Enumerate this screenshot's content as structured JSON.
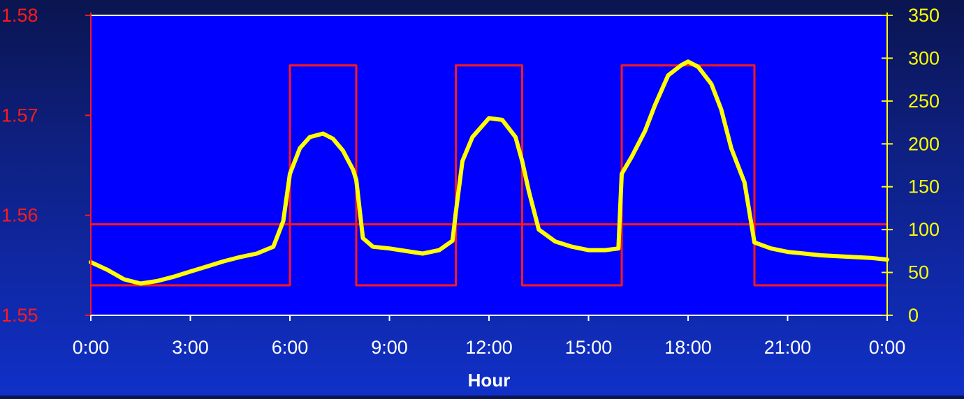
{
  "chart_data": {
    "type": "line",
    "xlabel": "Hour",
    "x_ticks": [
      "0:00",
      "3:00",
      "6:00",
      "9:00",
      "12:00",
      "15:00",
      "18:00",
      "21:00",
      "0:00"
    ],
    "x_range": [
      0,
      24
    ],
    "y_left": {
      "range": [
        1.55,
        1.58
      ],
      "ticks": [
        "1.55",
        "1.56",
        "1.57",
        "1.58"
      ],
      "color": "#ff1a1a"
    },
    "y_right": {
      "range": [
        0,
        350
      ],
      "ticks": [
        "0",
        "50",
        "100",
        "150",
        "200",
        "250",
        "300",
        "350"
      ],
      "color": "#ffff00"
    },
    "plot_background": "#0000ff",
    "series": [
      {
        "axis": "left",
        "color": "#ff1a1a",
        "style": "step",
        "x": [
          0,
          6,
          6,
          8,
          8,
          11,
          11,
          13,
          13,
          16,
          16,
          20,
          20,
          24
        ],
        "y": [
          1.553,
          1.553,
          1.575,
          1.575,
          1.553,
          1.553,
          1.575,
          1.575,
          1.553,
          1.553,
          1.575,
          1.575,
          1.553,
          1.553
        ]
      },
      {
        "axis": "left",
        "color": "#ff1a1a",
        "style": "line",
        "x": [
          0,
          24
        ],
        "y": [
          1.5591,
          1.5591
        ]
      },
      {
        "axis": "right",
        "color": "#ffff00",
        "style": "line",
        "x": [
          0,
          0.5,
          1,
          1.5,
          2,
          2.5,
          3,
          3.5,
          4,
          4.5,
          5,
          5.5,
          5.8,
          6,
          6.3,
          6.6,
          7,
          7.3,
          7.6,
          7.9,
          8,
          8.2,
          8.5,
          9,
          9.5,
          10,
          10.5,
          10.9,
          11,
          11.2,
          11.5,
          12,
          12.4,
          12.8,
          13,
          13.2,
          13.5,
          14,
          14.5,
          15,
          15.5,
          15.9,
          16,
          16.3,
          16.7,
          17,
          17.4,
          17.8,
          18,
          18.3,
          18.7,
          19,
          19.3,
          19.7,
          20,
          20.5,
          21,
          21.5,
          22,
          22.5,
          23,
          23.5,
          24
        ],
        "y": [
          62,
          53,
          42,
          37,
          40,
          45,
          51,
          57,
          63,
          68,
          72,
          80,
          110,
          165,
          195,
          208,
          212,
          206,
          192,
          170,
          158,
          90,
          80,
          78,
          75,
          72,
          76,
          87,
          120,
          180,
          208,
          230,
          228,
          208,
          180,
          145,
          100,
          86,
          80,
          76,
          76,
          78,
          165,
          185,
          215,
          245,
          280,
          292,
          296,
          290,
          270,
          240,
          195,
          155,
          85,
          78,
          74,
          72,
          70,
          69,
          68,
          67,
          65
        ]
      }
    ]
  }
}
